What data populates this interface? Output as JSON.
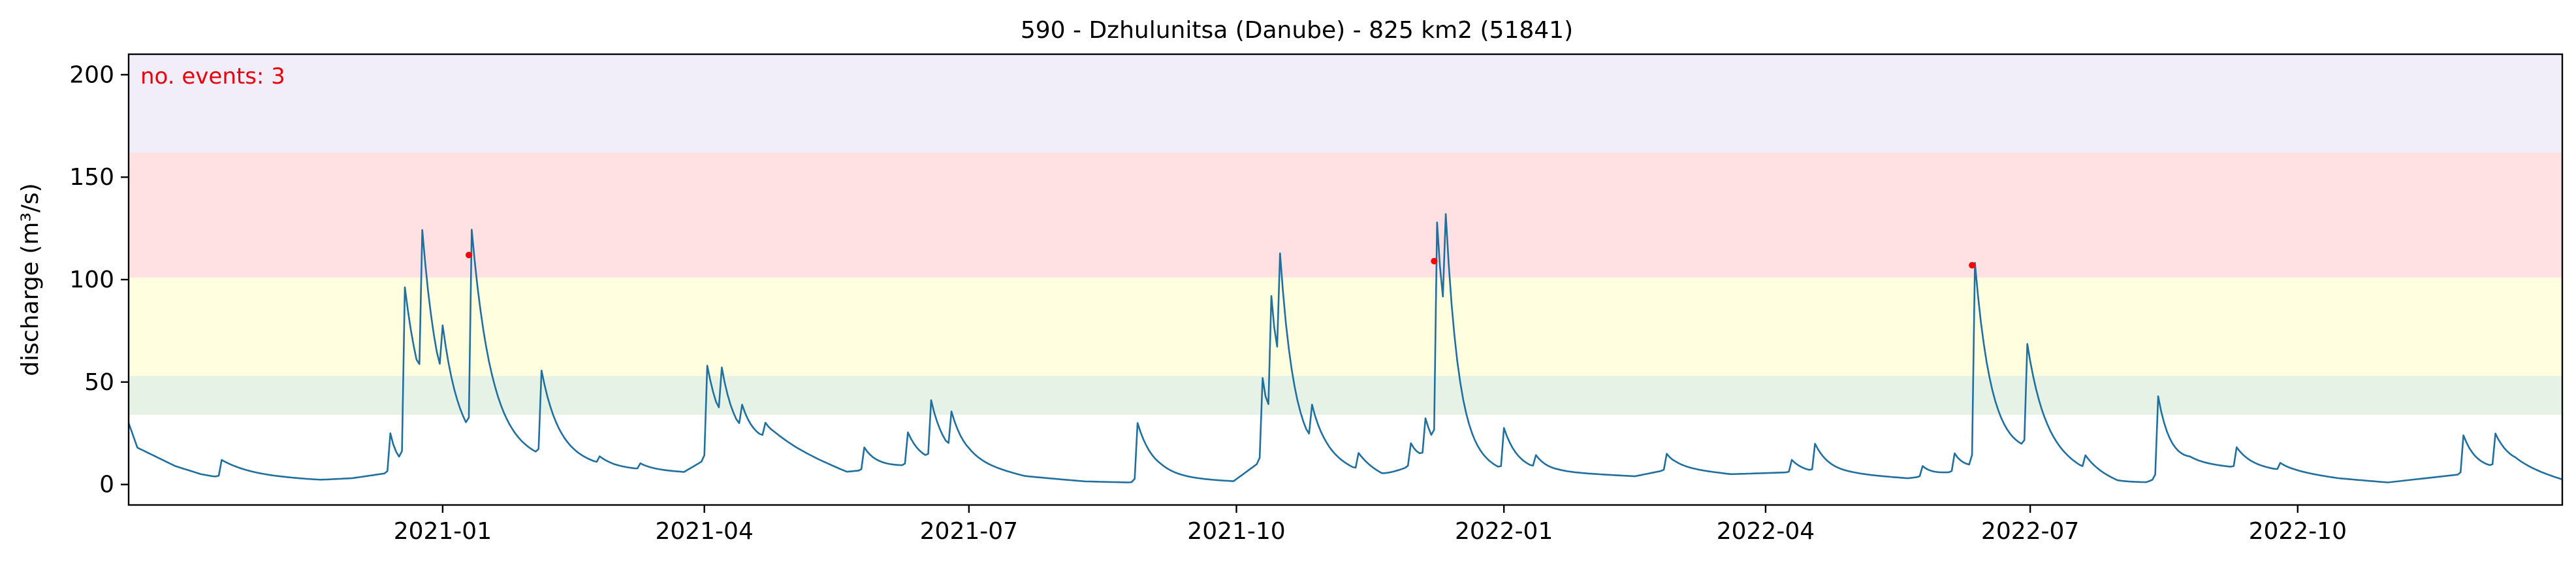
{
  "chart_data": {
    "type": "line",
    "title": "590 - Dzhulunitsa (Danube) - 825 km2 (51841)",
    "ylabel": "discharge (m³/s)",
    "xlabel": "",
    "annotation": "no. events: 3",
    "xlim": [
      "2020-09-15",
      "2022-12-31"
    ],
    "ylim": [
      -10,
      210
    ],
    "yticks": [
      0,
      50,
      100,
      150,
      200
    ],
    "xticks": [
      {
        "date": "2021-01-01",
        "label": "2021-01"
      },
      {
        "date": "2021-04-01",
        "label": "2021-04"
      },
      {
        "date": "2021-07-01",
        "label": "2021-07"
      },
      {
        "date": "2021-10-01",
        "label": "2021-10"
      },
      {
        "date": "2022-01-01",
        "label": "2022-01"
      },
      {
        "date": "2022-04-01",
        "label": "2022-04"
      },
      {
        "date": "2022-07-01",
        "label": "2022-07"
      },
      {
        "date": "2022-10-01",
        "label": "2022-10"
      }
    ],
    "bands": [
      {
        "from": 34,
        "to": 53,
        "color": "#e5f2e5"
      },
      {
        "from": 53,
        "to": 101,
        "color": "#ffffe0"
      },
      {
        "from": 101,
        "to": 162,
        "color": "#ffe1e4"
      },
      {
        "from": 162,
        "to": 210,
        "color": "#f2eef9"
      }
    ],
    "line_color": "#1f6f9f",
    "event_color": "#ff0000",
    "events": [
      {
        "date": "2021-01-10",
        "value": 112
      },
      {
        "date": "2021-12-08",
        "value": 109
      },
      {
        "date": "2022-06-11",
        "value": 107
      }
    ],
    "series": [
      {
        "baseline": [
          [
            "2020-09-15",
            30
          ],
          [
            "2020-09-18",
            18
          ],
          [
            "2020-10-01",
            9
          ],
          [
            "2020-10-10",
            5
          ],
          [
            "2020-10-14",
            4
          ],
          [
            "2020-11-01",
            3
          ],
          [
            "2020-11-20",
            2
          ],
          [
            "2020-12-01",
            3
          ],
          [
            "2020-12-15",
            6
          ],
          [
            "2021-01-01",
            14
          ],
          [
            "2021-01-25",
            12
          ],
          [
            "2021-02-15",
            10
          ],
          [
            "2021-03-01",
            8
          ],
          [
            "2021-03-25",
            6
          ],
          [
            "2021-04-01",
            12
          ],
          [
            "2021-04-25",
            20
          ],
          [
            "2021-05-20",
            6
          ],
          [
            "2021-06-01",
            8
          ],
          [
            "2021-06-20",
            10
          ],
          [
            "2021-07-01",
            10
          ],
          [
            "2021-07-20",
            4
          ],
          [
            "2021-08-10",
            1.5
          ],
          [
            "2021-08-25",
            1
          ],
          [
            "2021-09-05",
            3
          ],
          [
            "2021-09-30",
            1.5
          ],
          [
            "2021-10-10",
            12
          ],
          [
            "2021-10-31",
            10
          ],
          [
            "2021-11-20",
            3
          ],
          [
            "2021-12-05",
            12
          ],
          [
            "2021-12-31",
            6
          ],
          [
            "2022-01-20",
            6
          ],
          [
            "2022-02-15",
            4
          ],
          [
            "2022-03-01",
            8
          ],
          [
            "2022-03-20",
            5
          ],
          [
            "2022-04-10",
            6
          ],
          [
            "2022-05-01",
            5
          ],
          [
            "2022-05-20",
            3
          ],
          [
            "2022-06-05",
            6
          ],
          [
            "2022-06-30",
            14
          ],
          [
            "2022-07-31",
            1
          ],
          [
            "2022-08-10",
            1
          ],
          [
            "2022-08-25",
            10
          ],
          [
            "2022-09-30",
            6
          ],
          [
            "2022-10-15",
            3
          ],
          [
            "2022-11-01",
            1
          ],
          [
            "2022-11-20",
            4
          ],
          [
            "2022-12-15",
            8
          ],
          [
            "2022-12-31",
            2
          ]
        ],
        "peaks": [
          [
            "2020-10-17",
            12,
            10
          ],
          [
            "2020-12-14",
            25,
            3
          ],
          [
            "2020-12-19",
            93,
            8
          ],
          [
            "2020-12-25",
            85,
            6
          ],
          [
            "2021-01-01",
            40,
            5
          ],
          [
            "2021-01-11",
            112,
            7
          ],
          [
            "2021-02-04",
            52,
            6
          ],
          [
            "2021-02-24",
            12,
            4
          ],
          [
            "2021-03-10",
            10,
            4
          ],
          [
            "2021-04-02",
            58,
            6
          ],
          [
            "2021-04-07",
            38,
            5
          ],
          [
            "2021-04-14",
            28,
            5
          ],
          [
            "2021-04-22",
            26,
            6
          ],
          [
            "2021-05-26",
            18,
            5
          ],
          [
            "2021-06-10",
            25,
            5
          ],
          [
            "2021-06-18",
            38,
            5
          ],
          [
            "2021-06-25",
            28,
            5
          ],
          [
            "2021-08-28",
            30,
            6
          ],
          [
            "2021-10-10",
            52,
            4
          ],
          [
            "2021-10-13",
            73,
            5
          ],
          [
            "2021-10-16",
            70,
            5
          ],
          [
            "2021-10-27",
            28,
            5
          ],
          [
            "2021-11-12",
            14,
            5
          ],
          [
            "2021-11-30",
            20,
            4
          ],
          [
            "2021-12-05",
            30,
            4
          ],
          [
            "2021-12-09",
            120,
            5
          ],
          [
            "2021-12-12",
            68,
            4
          ],
          [
            "2022-01-01",
            26,
            5
          ],
          [
            "2022-01-12",
            12,
            4
          ],
          [
            "2022-02-26",
            15,
            4
          ],
          [
            "2022-04-10",
            12,
            4
          ],
          [
            "2022-04-18",
            19,
            5
          ],
          [
            "2022-05-25",
            9,
            4
          ],
          [
            "2022-06-05",
            15,
            4
          ],
          [
            "2022-06-12",
            107,
            6
          ],
          [
            "2022-06-30",
            64,
            6
          ],
          [
            "2022-07-20",
            12,
            4
          ],
          [
            "2022-08-14",
            43,
            5
          ],
          [
            "2022-09-10",
            18,
            5
          ],
          [
            "2022-09-25",
            10,
            4
          ],
          [
            "2022-11-27",
            24,
            5
          ],
          [
            "2022-12-08",
            23,
            6
          ]
        ]
      }
    ]
  }
}
